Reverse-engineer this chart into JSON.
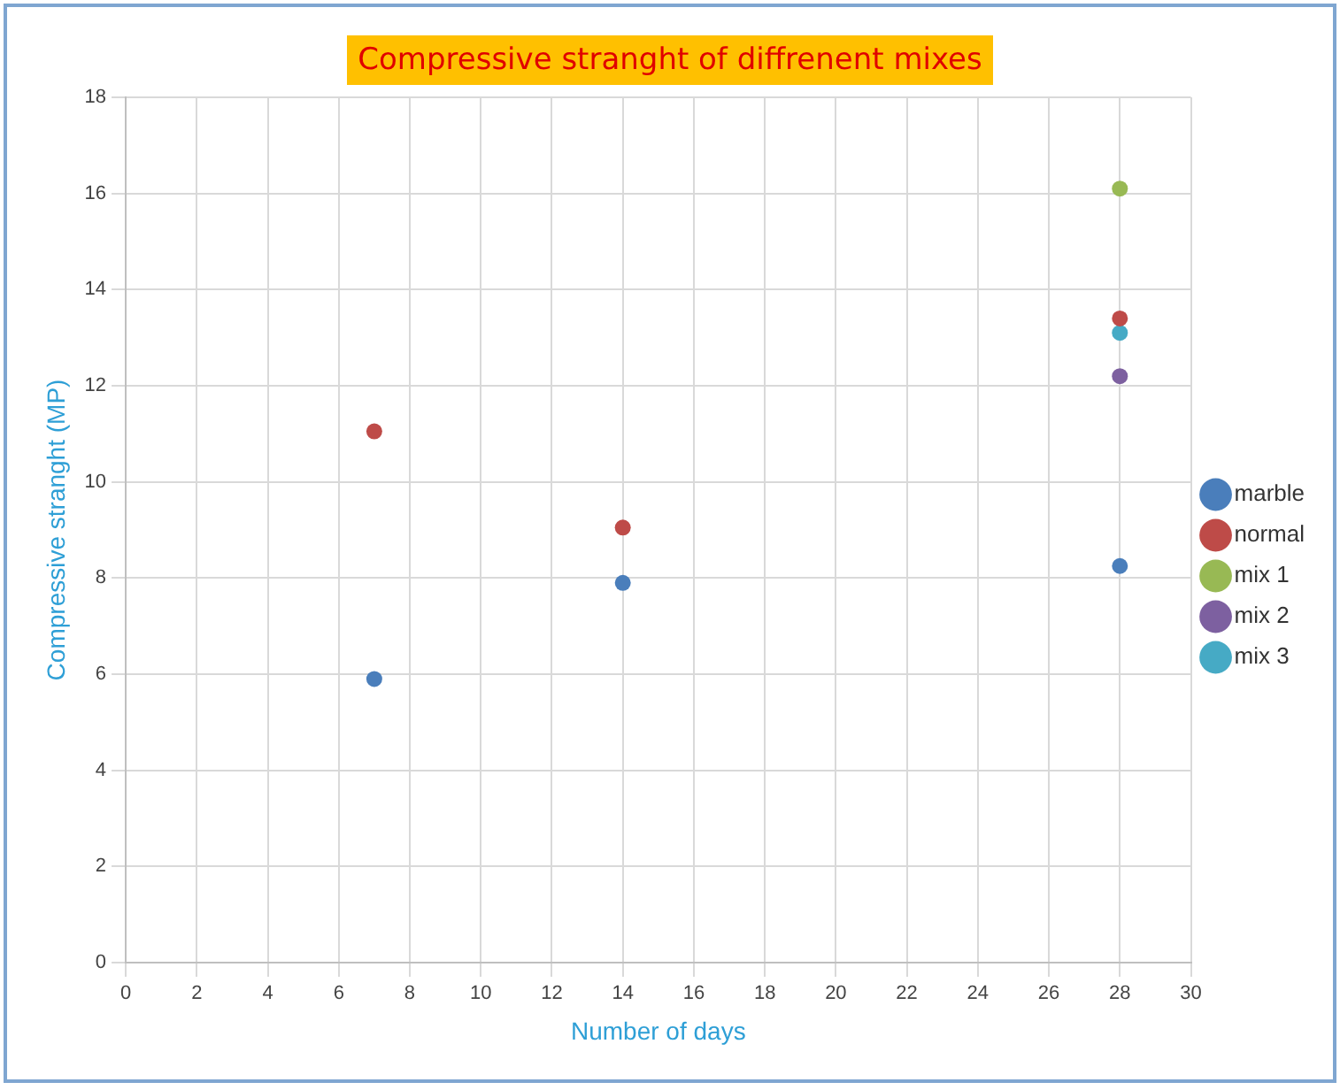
{
  "chart_data": {
    "type": "scatter",
    "title": "Compressive stranght of diffrenent mixes",
    "xlabel": "Number of days",
    "ylabel": "Compressive stranght (MP)",
    "xlim": [
      0,
      30
    ],
    "xticks": [
      0,
      2,
      4,
      6,
      8,
      10,
      12,
      14,
      16,
      18,
      20,
      22,
      24,
      26,
      28,
      30
    ],
    "ylim": [
      0,
      18
    ],
    "yticks": [
      0,
      2,
      4,
      6,
      8,
      10,
      12,
      14,
      16,
      18
    ],
    "grid": true,
    "legend": "right",
    "marker": "circle",
    "series": [
      {
        "name": "marble",
        "color": "#4a7ebb",
        "x": [
          7,
          14,
          28
        ],
        "values": [
          5.9,
          7.9,
          8.25
        ]
      },
      {
        "name": "normal",
        "color": "#be4b48",
        "x": [
          7,
          14,
          28
        ],
        "values": [
          11.05,
          9.05,
          13.4
        ]
      },
      {
        "name": "mix 1",
        "color": "#98b954",
        "x": [
          28
        ],
        "values": [
          16.1
        ]
      },
      {
        "name": "mix 2",
        "color": "#7d60a0",
        "x": [
          28
        ],
        "values": [
          12.2
        ]
      },
      {
        "name": "mix 3",
        "color": "#46aac5",
        "x": [
          28
        ],
        "values": [
          13.1
        ]
      }
    ]
  }
}
